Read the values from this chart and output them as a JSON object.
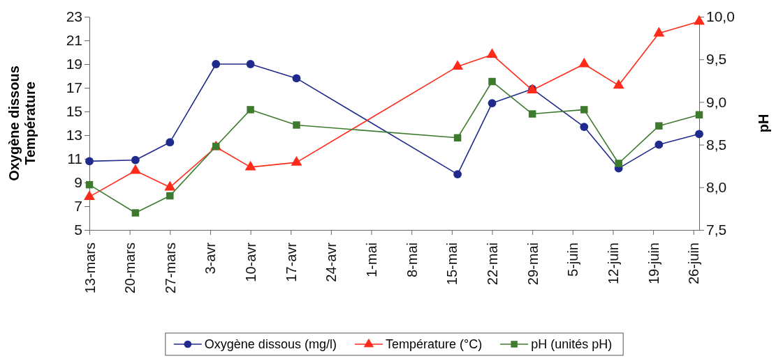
{
  "chart_data": {
    "type": "line",
    "x": [
      "--03-13",
      "--03-21",
      "--03-27",
      "--04-04",
      "--04-10",
      "--04-18",
      "--05-16",
      "--05-22",
      "--05-29",
      "--06-07",
      "--06-13",
      "--06-20",
      "--06-27"
    ],
    "series": [
      {
        "name": "Oxygène dissous (mg/l)",
        "color": "#1f2a8c",
        "marker": "circle",
        "values": [
          10.8,
          10.9,
          12.4,
          19.0,
          19.0,
          17.8,
          9.7,
          15.7,
          16.9,
          13.7,
          10.2,
          12.2,
          13.1
        ]
      },
      {
        "name": "Température (°C)",
        "color": "#ff2a1a",
        "marker": "triangle",
        "values": [
          7.8,
          10.0,
          8.6,
          12.0,
          10.3,
          10.7,
          18.8,
          19.8,
          16.8,
          19.0,
          17.2,
          21.6,
          22.6
        ]
      },
      {
        "name": "pH (unités pH)",
        "color": "#3d7a2e",
        "marker": "square",
        "axis": "y2",
        "values": [
          8.03,
          7.7,
          7.9,
          8.48,
          8.91,
          8.73,
          8.58,
          9.24,
          8.86,
          8.91,
          8.28,
          8.72,
          8.85
        ]
      }
    ],
    "xlim": [
      "--03-13",
      "--06-27"
    ],
    "xticks": [
      {
        "value": "--03-13",
        "label": "13-mars"
      },
      {
        "value": "--03-20",
        "label": "20-mars"
      },
      {
        "value": "--03-27",
        "label": "27-mars"
      },
      {
        "value": "--04-03",
        "label": "3-avr"
      },
      {
        "value": "--04-10",
        "label": "10-avr"
      },
      {
        "value": "--04-17",
        "label": "17-avr"
      },
      {
        "value": "--04-24",
        "label": "24-avr"
      },
      {
        "value": "--05-01",
        "label": "1-mai"
      },
      {
        "value": "--05-08",
        "label": "8-mai"
      },
      {
        "value": "--05-15",
        "label": "15-mai"
      },
      {
        "value": "--05-22",
        "label": "22-mai"
      },
      {
        "value": "--05-29",
        "label": "29-mai"
      },
      {
        "value": "--06-05",
        "label": "5-juin"
      },
      {
        "value": "--06-12",
        "label": "12-juin"
      },
      {
        "value": "--06-19",
        "label": "19-juin"
      },
      {
        "value": "--06-26",
        "label": "26-juin"
      }
    ],
    "ylim": [
      5,
      23
    ],
    "yticks": [
      5,
      7,
      9,
      11,
      13,
      15,
      17,
      19,
      21,
      23
    ],
    "y2lim": [
      7.5,
      10
    ],
    "y2ticks": [
      {
        "value": 7.5,
        "label": "7,5"
      },
      {
        "value": 8,
        "label": "8,0"
      },
      {
        "value": 8.5,
        "label": "8,5"
      },
      {
        "value": 9,
        "label": "9,0"
      },
      {
        "value": 9.5,
        "label": "9,5"
      },
      {
        "value": 10,
        "label": "10,0"
      }
    ],
    "ylabel": "Oxygène dissous\nTempérature",
    "y2label": "pH",
    "legend": "bottom",
    "grid": false
  }
}
